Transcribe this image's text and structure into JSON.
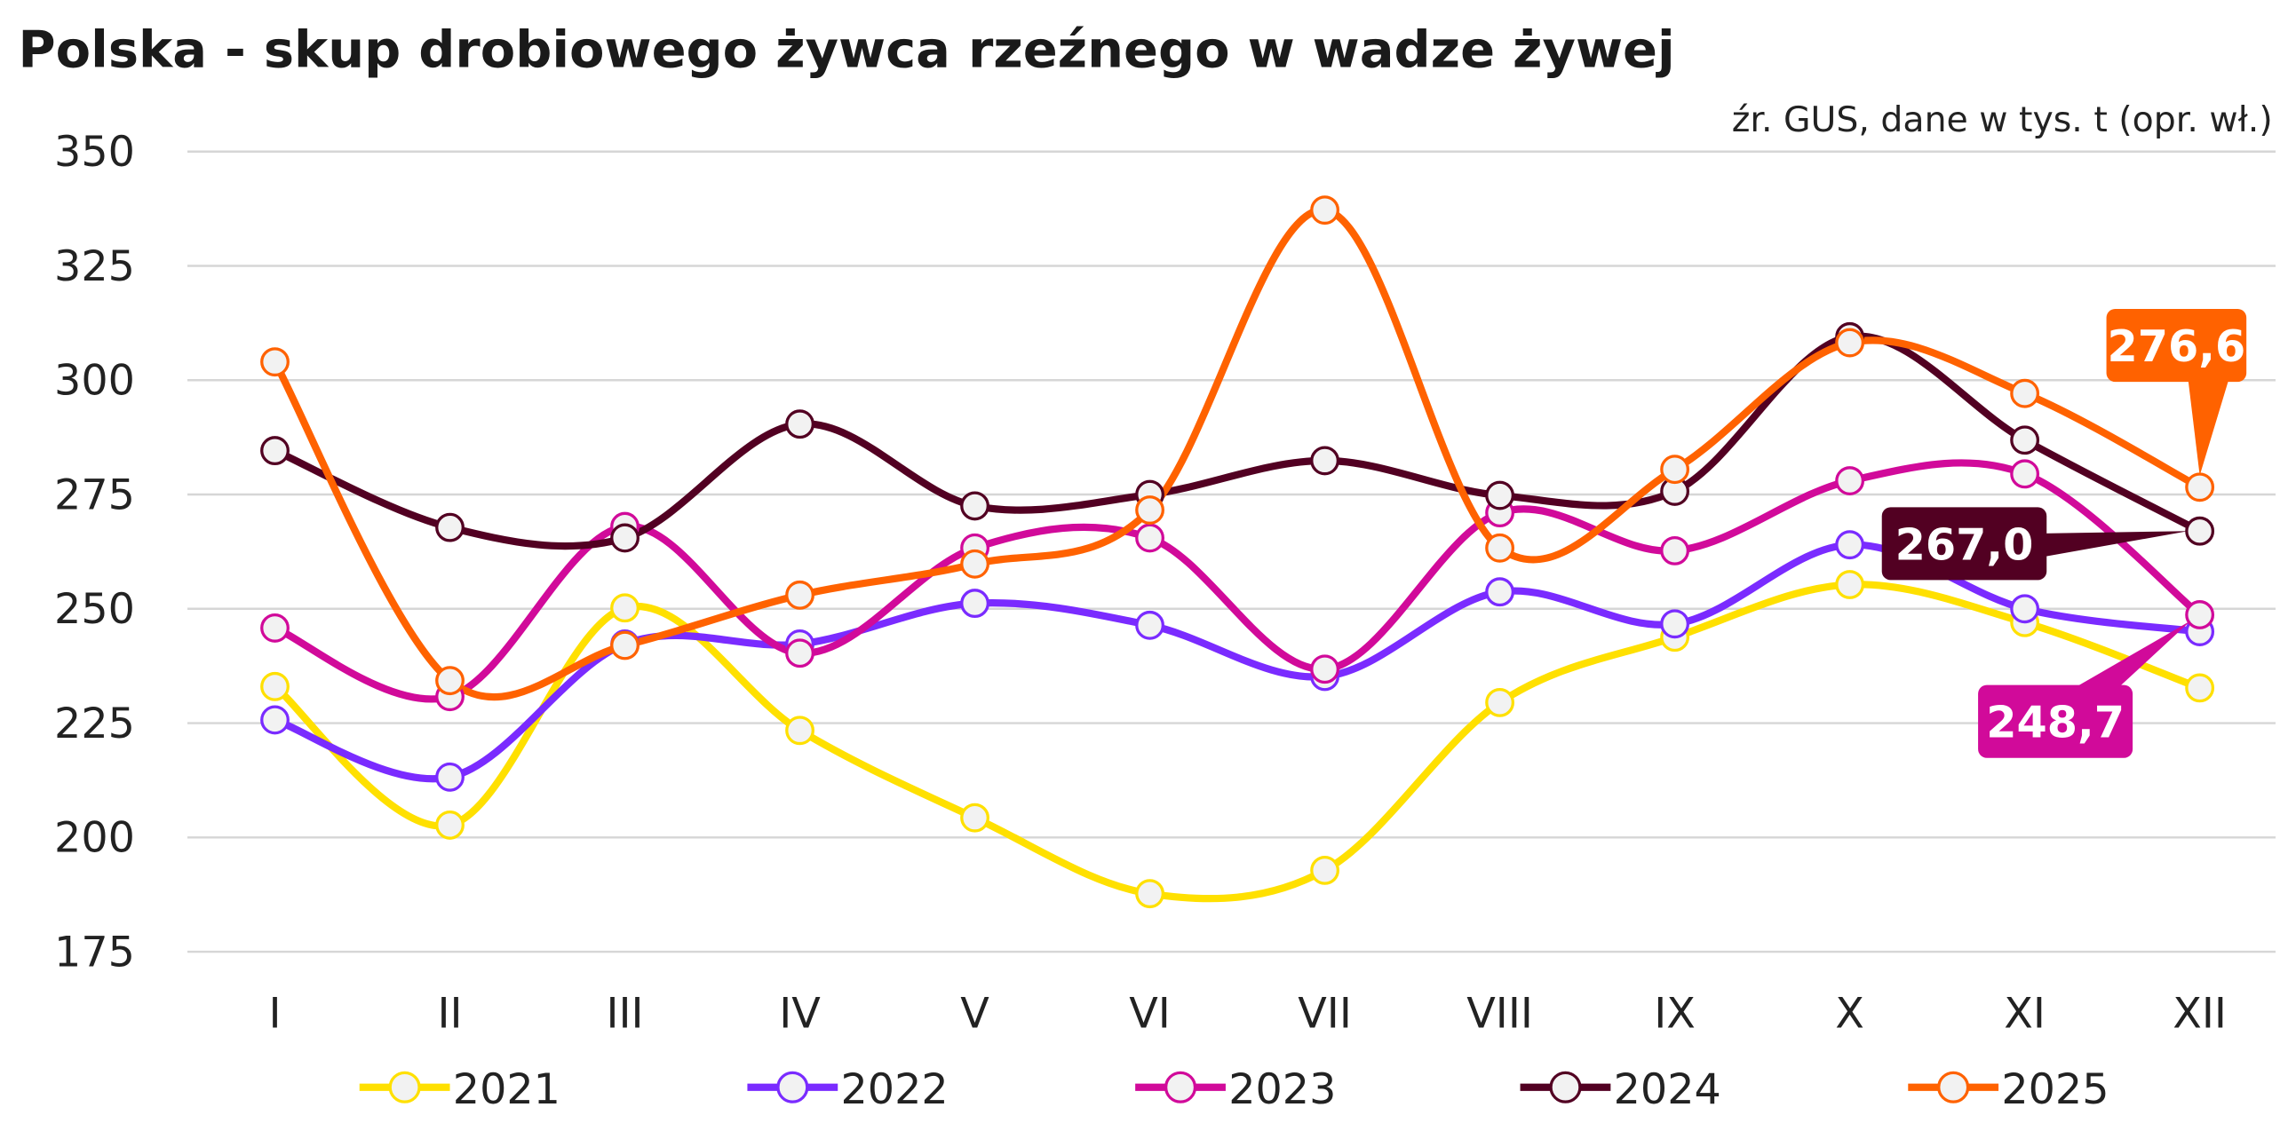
{
  "chart_data": {
    "type": "line",
    "title": "Polska - skup drobiowego żywca rzeźnego w wadze żywej",
    "source_note": "źr. GUS, dane w tys. t (opr. wł.)",
    "xlabel": "",
    "ylabel": "",
    "ylim": [
      175,
      350
    ],
    "yticks": [
      175,
      200,
      225,
      250,
      275,
      300,
      325,
      350
    ],
    "grid": true,
    "legend_position": "bottom",
    "categories": [
      "I",
      "II",
      "III",
      "IV",
      "V",
      "VI",
      "VII",
      "VIII",
      "IX",
      "X",
      "XI",
      "XII"
    ],
    "series": [
      {
        "name": "2021",
        "color": "#FFE000",
        "values": [
          233.0,
          202.7,
          250.2,
          223.4,
          204.3,
          187.7,
          192.8,
          229.5,
          243.8,
          255.3,
          247.0,
          232.7
        ]
      },
      {
        "name": "2022",
        "color": "#7A2BFF",
        "values": [
          225.7,
          213.2,
          242.3,
          242.3,
          251.2,
          246.4,
          235.2,
          253.7,
          246.7,
          264.0,
          250.0,
          245.0
        ]
      },
      {
        "name": "2023",
        "color": "#D10A9A",
        "values": [
          245.8,
          230.8,
          268.0,
          240.3,
          263.3,
          265.5,
          236.8,
          271.0,
          262.7,
          278.0,
          279.5,
          248.7
        ]
      },
      {
        "name": "2024",
        "color": "#520022",
        "values": [
          284.6,
          267.8,
          265.5,
          290.4,
          272.5,
          275.0,
          282.4,
          274.8,
          275.7,
          309.5,
          286.9,
          267.0
        ]
      },
      {
        "name": "2025",
        "color": "#FF6200",
        "values": [
          304.0,
          234.3,
          242.0,
          253.0,
          259.8,
          271.6,
          337.2,
          263.3,
          280.5,
          308.2,
          297.1,
          276.6
        ]
      }
    ],
    "annotations": [
      {
        "series": "2025",
        "category": "XII",
        "text": "276,6",
        "color": "#FF6200"
      },
      {
        "series": "2024",
        "category": "XII",
        "text": "267,0",
        "color": "#520022"
      },
      {
        "series": "2023",
        "category": "XII",
        "text": "248,7",
        "color": "#D10A9A"
      }
    ]
  }
}
